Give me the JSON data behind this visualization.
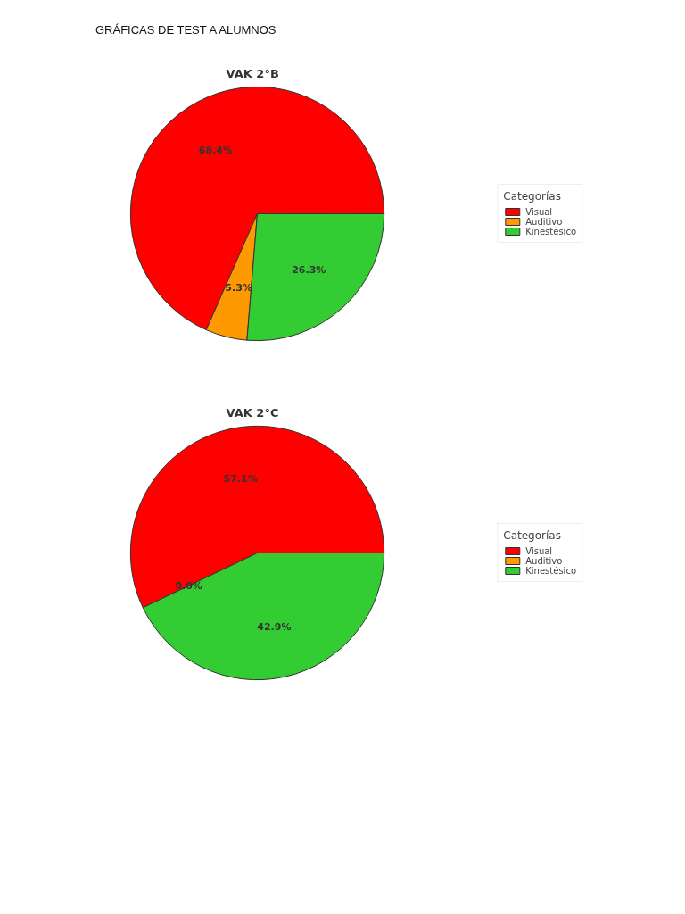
{
  "chart_data": [
    {
      "type": "pie",
      "title": "VAK 2°B",
      "annotations": [
        "GRÁFICAS DE TEST A ALUMNOS"
      ],
      "legend_title": "Categorías",
      "legend": "right",
      "categories": [
        "Visual",
        "Auditivo",
        "Kinestésico"
      ],
      "values": [
        68.4,
        5.3,
        26.3
      ],
      "value_labels": [
        "68.4%",
        "5.3%",
        "26.3%"
      ],
      "colors": [
        "#ff0000",
        "#ff9900",
        "#33cc33"
      ]
    },
    {
      "type": "pie",
      "title": "VAK 2°C",
      "legend_title": "Categorías",
      "legend": "right",
      "categories": [
        "Visual",
        "Auditivo",
        "Kinestésico"
      ],
      "values": [
        57.1,
        0.0,
        42.9
      ],
      "value_labels": [
        "57.1%",
        "0.0%",
        "42.9%"
      ],
      "colors": [
        "#ff0000",
        "#ff9900",
        "#33cc33"
      ]
    }
  ]
}
